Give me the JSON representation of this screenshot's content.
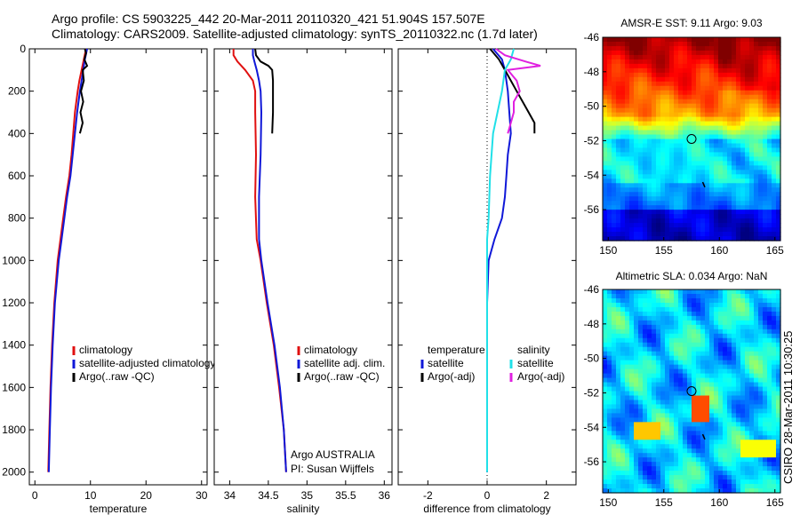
{
  "header": {
    "line1": "Argo profile: CS 5903225_442 20-Mar-2011 20110320_421 51.904S 157.507E",
    "line2": "Climatology: CARS2009. Satellite-adjusted climatology: synTS_20110322.nc (1.7d later)"
  },
  "side_note": "CSIRO 28-Mar-2011 10:30:25",
  "colors": {
    "red": "#e01010",
    "blue": "#1018d8",
    "black": "#000000",
    "cyan": "#20e0e8",
    "magenta": "#e020e0"
  },
  "chart_data": [
    {
      "type": "line",
      "xlabel": "temperature",
      "xlim": [
        -1,
        31
      ],
      "ylim": [
        0,
        2060
      ],
      "y_inverted": true,
      "xticks": [
        0,
        10,
        20,
        30
      ],
      "yticks": [
        0,
        200,
        400,
        600,
        800,
        1000,
        1200,
        1400,
        1600,
        1800,
        2000
      ],
      "legend": [
        "climatology",
        "satellite-adjusted climatology",
        "Argo(..raw -QC)"
      ],
      "series": [
        {
          "name": "climatology",
          "color": "red",
          "depth": [
            0,
            50,
            100,
            150,
            200,
            300,
            400,
            500,
            600,
            700,
            800,
            900,
            1000,
            1200,
            1400,
            1600,
            1800,
            2000
          ],
          "values": [
            9.2,
            8.8,
            8.4,
            8.0,
            7.7,
            7.2,
            6.9,
            6.6,
            6.2,
            5.6,
            5.1,
            4.6,
            4.1,
            3.5,
            3.1,
            2.8,
            2.6,
            2.4
          ]
        },
        {
          "name": "satellite-adjusted climatology",
          "color": "blue",
          "depth": [
            0,
            50,
            100,
            150,
            200,
            300,
            400,
            500,
            600,
            700,
            800,
            900,
            1000,
            1200,
            1400,
            1600,
            1800,
            2000
          ],
          "values": [
            9.4,
            9.0,
            8.7,
            8.4,
            8.1,
            7.6,
            7.2,
            6.8,
            6.4,
            5.8,
            5.3,
            4.8,
            4.3,
            3.6,
            3.2,
            2.9,
            2.7,
            2.5
          ]
        },
        {
          "name": "Argo(..raw -QC)",
          "color": "black",
          "depth": [
            0,
            20,
            50,
            80,
            100,
            150,
            200,
            250,
            300,
            350,
            400
          ],
          "values": [
            9.0,
            9.2,
            8.9,
            9.4,
            8.6,
            8.8,
            8.3,
            8.7,
            8.2,
            8.6,
            8.1
          ]
        }
      ]
    },
    {
      "type": "line",
      "xlabel": "salinity",
      "xlim": [
        33.8,
        36.1
      ],
      "ylim": [
        0,
        2060
      ],
      "y_inverted": true,
      "xticks": [
        34,
        34.5,
        35,
        35.5,
        36
      ],
      "legend": [
        "climatology",
        "satellite adj. clim.",
        "Argo(..raw -QC)"
      ],
      "annotation": [
        "Argo AUSTRALIA",
        "PI: Susan Wijffels"
      ],
      "series": [
        {
          "name": "climatology",
          "color": "red",
          "depth": [
            0,
            30,
            60,
            100,
            150,
            200,
            300,
            500,
            700,
            900,
            1000,
            1200,
            1400,
            1600,
            1800,
            2000
          ],
          "values": [
            34.05,
            34.05,
            34.1,
            34.2,
            34.3,
            34.33,
            34.33,
            34.34,
            34.33,
            34.35,
            34.4,
            34.48,
            34.57,
            34.64,
            34.7,
            34.73
          ]
        },
        {
          "name": "satellite adj. clim.",
          "color": "blue",
          "depth": [
            0,
            30,
            60,
            100,
            150,
            200,
            300,
            500,
            700,
            900,
            1000,
            1200,
            1400,
            1600,
            1800,
            2000
          ],
          "values": [
            34.3,
            34.3,
            34.32,
            34.35,
            34.38,
            34.4,
            34.41,
            34.4,
            34.38,
            34.38,
            34.41,
            34.49,
            34.58,
            34.65,
            34.7,
            34.73
          ]
        },
        {
          "name": "Argo(..raw -QC)",
          "color": "black",
          "depth": [
            0,
            30,
            60,
            80,
            100,
            150,
            200,
            300,
            400
          ],
          "values": [
            34.33,
            34.34,
            34.4,
            34.5,
            34.55,
            34.56,
            34.56,
            34.56,
            34.55
          ]
        }
      ]
    },
    {
      "type": "line",
      "xlabel": "difference from climatology",
      "xlim": [
        -3,
        3
      ],
      "ylim": [
        0,
        2060
      ],
      "y_inverted": true,
      "xticks": [
        -2,
        0,
        2
      ],
      "legend_temperature": {
        "title": "temperature",
        "entries": [
          "satellite",
          "Argo(-adj)"
        ]
      },
      "legend_salinity": {
        "title": "salinity",
        "entries": [
          "satellite",
          "Argo(-adj)"
        ]
      },
      "series": [
        {
          "name": "temperature satellite",
          "color": "blue",
          "depth": [
            0,
            50,
            100,
            200,
            300,
            400,
            500,
            600,
            700,
            800,
            900,
            1000,
            1200,
            1500,
            2000
          ],
          "values": [
            0.2,
            0.5,
            0.6,
            0.7,
            0.75,
            0.8,
            0.7,
            0.65,
            0.6,
            0.5,
            0.25,
            0.05,
            0.0,
            0.0,
            0.0
          ]
        },
        {
          "name": "temperature Argo(-adj)",
          "color": "black",
          "depth": [
            0,
            50,
            100,
            200,
            300,
            350,
            400
          ],
          "values": [
            0.1,
            0.4,
            0.6,
            1.0,
            1.4,
            1.6,
            1.6
          ]
        },
        {
          "name": "salinity satellite",
          "color": "cyan",
          "depth": [
            0,
            50,
            100,
            200,
            400,
            600,
            800,
            900,
            1000,
            1200,
            1500,
            2000
          ],
          "values": [
            0.9,
            0.8,
            0.6,
            0.5,
            0.2,
            0.1,
            0.05,
            0.0,
            0.0,
            0.0,
            0.0,
            0.0
          ]
        },
        {
          "name": "salinity Argo(-adj)",
          "color": "magenta",
          "depth": [
            0,
            30,
            60,
            80,
            100,
            150,
            200,
            250,
            300,
            350,
            400
          ],
          "values": [
            0.3,
            0.6,
            1.3,
            1.8,
            0.7,
            1.0,
            1.1,
            0.9,
            0.9,
            0.8,
            0.7
          ]
        }
      ]
    },
    {
      "type": "heatmap",
      "title": "AMSR-E SST: 9.11 Argo: 9.03",
      "xlim": [
        149.5,
        165.5
      ],
      "ylim": [
        -57.8,
        -46
      ],
      "xticks": [
        150,
        155,
        160,
        165
      ],
      "yticks": [
        -46,
        -48,
        -50,
        -52,
        -54,
        -56
      ],
      "marker": {
        "lon": 157.5,
        "lat": -51.9
      },
      "colormap": "jet"
    },
    {
      "type": "heatmap",
      "title": "Altimetric SLA: 0.034 Argo: NaN",
      "xlim": [
        149.5,
        165.5
      ],
      "ylim": [
        -57.8,
        -46
      ],
      "xticks": [
        150,
        155,
        160,
        165
      ],
      "yticks": [
        -46,
        -48,
        -50,
        -52,
        -54,
        -56
      ],
      "marker": {
        "lon": 157.5,
        "lat": -51.9
      },
      "colormap": "jet"
    }
  ]
}
